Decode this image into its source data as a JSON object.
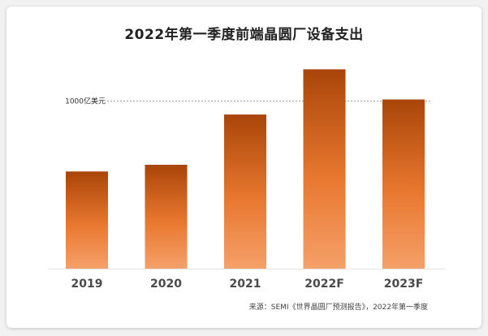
{
  "chart_data": {
    "type": "bar",
    "title": "2022年第一季度前端晶圆厂设备支出",
    "categories": [
      "2019",
      "2020",
      "2021",
      "2022F",
      "2023F"
    ],
    "values": [
      580,
      620,
      920,
      1190,
      1010
    ],
    "ylim": [
      0,
      1250
    ],
    "reference_line": {
      "value": 1000,
      "label": "1000亿美元"
    },
    "xlabel": "",
    "ylabel": "",
    "grid": false,
    "bar_color_top": "#a94509",
    "bar_color_bottom": "#f5a06a"
  },
  "source": "来源：SEMI《世界晶圆厂预测报告》，2022年第一季度"
}
